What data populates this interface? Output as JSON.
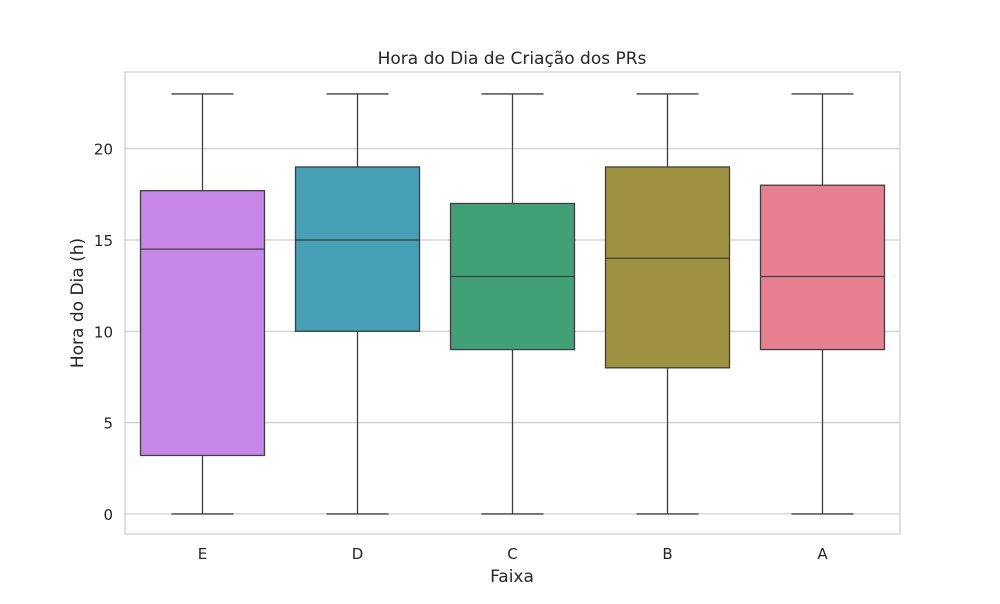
{
  "chart_data": {
    "type": "box",
    "title": "Hora do Dia de Criação dos PRs",
    "xlabel": "Faixa",
    "ylabel": "Hora do Dia (h)",
    "ylim": [
      -1.1,
      24.2
    ],
    "yticks": [
      0,
      5,
      10,
      15,
      20
    ],
    "grid": true,
    "categories": [
      "E",
      "D",
      "C",
      "B",
      "A"
    ],
    "boxes": [
      {
        "category": "E",
        "min": 0,
        "q1": 3.2,
        "median": 14.5,
        "q3": 17.7,
        "max": 23,
        "color": "#c687e8"
      },
      {
        "category": "D",
        "min": 0,
        "q1": 10,
        "median": 15,
        "q3": 19,
        "max": 23,
        "color": "#479fb6"
      },
      {
        "category": "C",
        "min": 0,
        "q1": 9,
        "median": 13,
        "q3": 17,
        "max": 23,
        "color": "#42a078"
      },
      {
        "category": "B",
        "min": 0,
        "q1": 8,
        "median": 14,
        "q3": 19,
        "max": 23,
        "color": "#9e9140"
      },
      {
        "category": "A",
        "min": 0,
        "q1": 9,
        "median": 13,
        "q3": 18,
        "max": 23,
        "color": "#e77f91"
      }
    ]
  }
}
